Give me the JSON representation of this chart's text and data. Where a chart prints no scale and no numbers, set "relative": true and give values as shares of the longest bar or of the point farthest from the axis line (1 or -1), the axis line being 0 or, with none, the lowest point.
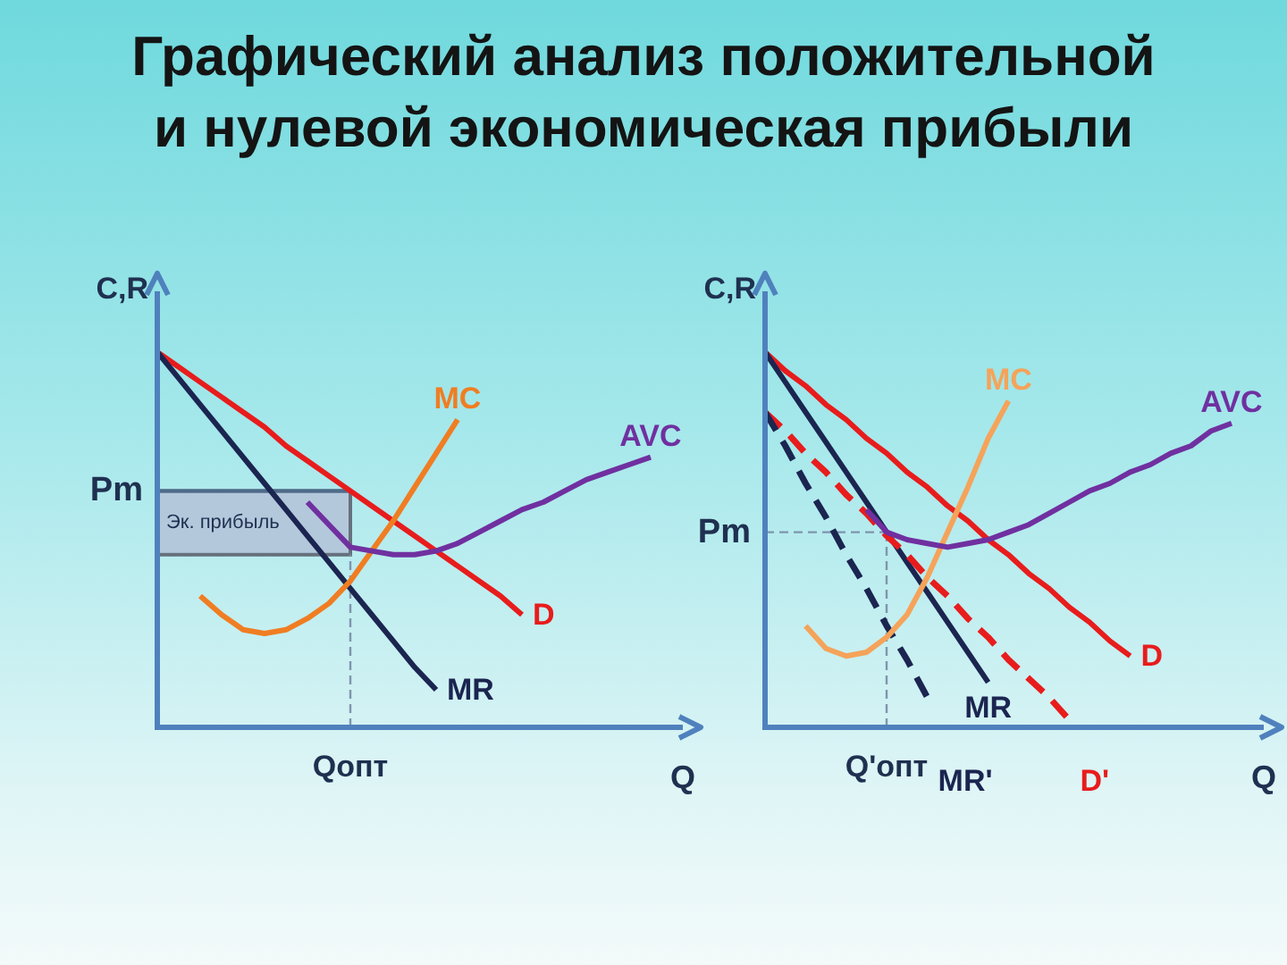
{
  "chart_data": [
    {
      "type": "line",
      "title": "Графический анализ положительной и нулевой экономическая прибыли",
      "relative": true,
      "xlabel": "Q",
      "ylabel": "C,R",
      "categories": [
        null,
        null,
        null,
        null,
        null,
        null,
        null,
        null,
        null,
        null,
        null,
        null,
        null,
        null,
        null,
        null,
        null,
        null,
        null,
        null,
        null,
        null,
        null,
        null
      ],
      "series": [
        {
          "name": "D",
          "color": "#e81c1c",
          "values": [
            1,
            0.96,
            0.92,
            0.88,
            0.84,
            0.8,
            0.75,
            0.71,
            0.67,
            0.63,
            0.59,
            0.55,
            0.51,
            0.47,
            0.43,
            0.39,
            0.35,
            0.3,
            null,
            null,
            null,
            null,
            null,
            null
          ]
        },
        {
          "name": "MR",
          "color": "#1b2550",
          "values": [
            1,
            0.93,
            0.86,
            0.79,
            0.72,
            0.65,
            0.58,
            0.51,
            0.44,
            0.37,
            0.3,
            0.23,
            0.16,
            0.1,
            null,
            null,
            null,
            null,
            null,
            null,
            null,
            null,
            null,
            null
          ]
        },
        {
          "name": "MC",
          "color": "#f07d22",
          "values": [
            null,
            null,
            0.35,
            0.3,
            0.26,
            0.25,
            0.26,
            0.29,
            0.33,
            0.39,
            0.47,
            0.55,
            0.64,
            0.73,
            0.82,
            null,
            null,
            null,
            null,
            null,
            null,
            null,
            null,
            null
          ]
        },
        {
          "name": "AVC",
          "color": "#7030a0",
          "values": [
            null,
            null,
            null,
            null,
            null,
            null,
            null,
            0.6,
            0.54,
            0.48,
            0.47,
            0.46,
            0.46,
            0.47,
            0.49,
            0.52,
            0.55,
            0.58,
            0.6,
            0.63,
            0.66,
            0.68,
            0.7,
            0.72
          ]
        }
      ],
      "ref_lines": [
        {
          "axis": "y",
          "value": 0.63,
          "label": "Pm",
          "color": "#4d6b8a",
          "line_style": "solid"
        }
      ],
      "bands": [
        {
          "axis": "y",
          "from": 0.46,
          "to": 0.63,
          "label": "Эк. прибыль",
          "color": "#b4c8dc"
        }
      ],
      "annotations": [
        "Qопт"
      ]
    },
    {
      "type": "line",
      "relative": true,
      "xlabel": "Q",
      "ylabel": "C,R",
      "categories": [
        null,
        null,
        null,
        null,
        null,
        null,
        null,
        null,
        null,
        null,
        null,
        null,
        null,
        null,
        null,
        null,
        null,
        null,
        null,
        null,
        null,
        null,
        null,
        null
      ],
      "series": [
        {
          "name": "D",
          "color": "#e81c1c",
          "values": [
            1,
            0.95,
            0.91,
            0.86,
            0.82,
            0.77,
            0.73,
            0.68,
            0.64,
            0.59,
            0.55,
            0.5,
            0.46,
            0.41,
            0.37,
            0.32,
            0.28,
            0.23,
            0.19,
            null,
            null,
            null,
            null,
            null
          ]
        },
        {
          "name": "MR",
          "color": "#1b2550",
          "values": [
            1,
            0.92,
            0.84,
            0.76,
            0.68,
            0.6,
            0.52,
            0.44,
            0.36,
            0.28,
            0.2,
            0.12,
            null,
            null,
            null,
            null,
            null,
            null,
            null,
            null,
            null,
            null,
            null,
            null
          ]
        },
        {
          "name": "D'",
          "color": "#e81c1c",
          "line_style": "dashed",
          "values": [
            0.84,
            0.79,
            0.73,
            0.68,
            0.62,
            0.57,
            0.51,
            0.46,
            0.4,
            0.35,
            0.29,
            0.24,
            0.18,
            0.13,
            0.08,
            0.02,
            null,
            null,
            null,
            null,
            null,
            null,
            null,
            null
          ]
        },
        {
          "name": "MR'",
          "color": "#1b2550",
          "line_style": "dashed",
          "values": [
            0.84,
            0.75,
            0.65,
            0.56,
            0.46,
            0.37,
            0.27,
            0.18,
            0.08,
            null,
            null,
            null,
            null,
            null,
            null,
            null,
            null,
            null,
            null,
            null,
            null,
            null,
            null,
            null
          ]
        },
        {
          "name": "MC",
          "color": "#f5a35a",
          "values": [
            null,
            null,
            0.27,
            0.21,
            0.19,
            0.2,
            0.24,
            0.3,
            0.4,
            0.52,
            0.64,
            0.77,
            0.87,
            null,
            null,
            null,
            null,
            null,
            null,
            null,
            null,
            null,
            null,
            null
          ]
        },
        {
          "name": "AVC",
          "color": "#7030a0",
          "values": [
            null,
            null,
            null,
            null,
            null,
            0.58,
            0.52,
            0.5,
            0.49,
            0.48,
            0.49,
            0.5,
            0.52,
            0.54,
            0.57,
            0.6,
            0.63,
            0.65,
            0.68,
            0.7,
            0.73,
            0.75,
            0.79,
            0.81
          ]
        }
      ],
      "ref_lines": [
        {
          "axis": "y",
          "value": 0.52,
          "label": "Pm",
          "color": "#7f95ad",
          "line_style": "dashed"
        }
      ],
      "annotations": [
        "Q'опт"
      ]
    }
  ]
}
